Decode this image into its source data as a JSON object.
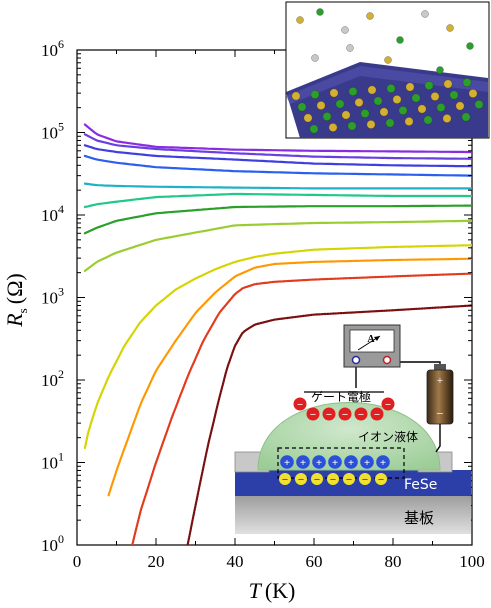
{
  "chart_data": {
    "type": "line",
    "xlabel": "T",
    "xlabel_unit": "(K)",
    "ylabel": "R",
    "ylabel_sub": "s",
    "ylabel_unit": "(Ω)",
    "y_scale": "log",
    "xlim": [
      0,
      100
    ],
    "ylim": [
      1,
      1000000
    ],
    "x_ticks": [
      "0",
      "20",
      "40",
      "60",
      "80",
      "100"
    ],
    "y_ticks": [
      {
        "base": "10",
        "exp": "0"
      },
      {
        "base": "10",
        "exp": "1"
      },
      {
        "base": "10",
        "exp": "2"
      },
      {
        "base": "10",
        "exp": "3"
      },
      {
        "base": "10",
        "exp": "4"
      },
      {
        "base": "10",
        "exp": "5"
      },
      {
        "base": "10",
        "exp": "6"
      }
    ],
    "grid": false,
    "series": [
      {
        "color": "#8a2be2",
        "x": [
          2,
          5,
          10,
          20,
          40,
          60,
          80,
          100
        ],
        "y": [
          125000,
          95000,
          78000,
          67000,
          62000,
          60000,
          59000,
          58000
        ]
      },
      {
        "color": "#6a3fe0",
        "x": [
          2,
          5,
          10,
          20,
          40,
          60,
          80,
          100
        ],
        "y": [
          95000,
          80000,
          70000,
          63000,
          56000,
          51000,
          49000,
          48000
        ]
      },
      {
        "color": "#3f3fe0",
        "x": [
          2,
          5,
          10,
          20,
          40,
          60,
          80,
          100
        ],
        "y": [
          70000,
          63000,
          58000,
          52000,
          47000,
          42000,
          40000,
          39000
        ]
      },
      {
        "color": "#2a5ff0",
        "x": [
          2,
          5,
          10,
          20,
          40,
          60,
          80,
          100
        ],
        "y": [
          52000,
          47000,
          43000,
          38000,
          34000,
          32000,
          31000,
          30000
        ]
      },
      {
        "color": "#20b0c8",
        "x": [
          2,
          5,
          10,
          20,
          40,
          60,
          80,
          100
        ],
        "y": [
          24000,
          23000,
          22500,
          22000,
          21500,
          21000,
          21000,
          21000
        ]
      },
      {
        "color": "#22c88a",
        "x": [
          2,
          5,
          10,
          20,
          40,
          60,
          80,
          100
        ],
        "y": [
          12500,
          13500,
          14500,
          16500,
          18000,
          17500,
          17000,
          17000
        ]
      },
      {
        "color": "#2aa02a",
        "x": [
          2,
          5,
          10,
          20,
          40,
          60,
          80,
          100
        ],
        "y": [
          6000,
          7000,
          8500,
          10500,
          12500,
          12800,
          12800,
          13000
        ]
      },
      {
        "color": "#9acd32",
        "x": [
          2,
          5,
          10,
          20,
          40,
          60,
          80,
          100
        ],
        "y": [
          2100,
          2700,
          3500,
          5000,
          7500,
          8000,
          8200,
          8500
        ]
      },
      {
        "color": "#d4d400",
        "x": [
          2,
          3,
          5,
          8,
          12,
          16,
          20,
          25,
          30,
          35,
          40,
          45,
          50,
          60,
          80,
          100
        ],
        "y": [
          15,
          25,
          50,
          110,
          260,
          500,
          800,
          1250,
          1700,
          2200,
          2700,
          3100,
          3400,
          3800,
          4100,
          4300
        ]
      },
      {
        "color": "#ff9800",
        "x": [
          8,
          10,
          13,
          16,
          20,
          25,
          30,
          35,
          40,
          45,
          50,
          60,
          80,
          100
        ],
        "y": [
          4,
          8,
          20,
          50,
          130,
          300,
          650,
          1150,
          1800,
          2300,
          2550,
          2700,
          2850,
          2950
        ]
      },
      {
        "color": "#e23a1a",
        "x": [
          14,
          16,
          20,
          24,
          28,
          32,
          36,
          40,
          42,
          45,
          50,
          60,
          80,
          100
        ],
        "y": [
          1,
          2.5,
          10,
          35,
          110,
          300,
          650,
          1100,
          1300,
          1450,
          1550,
          1650,
          1800,
          1950
        ]
      },
      {
        "color": "#7a0f0f",
        "x": [
          28,
          30,
          33,
          36,
          38,
          40,
          42,
          45,
          50,
          60,
          80,
          100
        ],
        "y": [
          1,
          3,
          15,
          60,
          140,
          260,
          380,
          470,
          540,
          620,
          700,
          800
        ]
      }
    ]
  },
  "insets": {
    "device": {
      "meter_label": "A",
      "gate_label": "ゲート電極",
      "liquid_label": "イオン液体",
      "fese_label": "FeSe",
      "substrate_label": "基板",
      "battery_plus": "+",
      "battery_minus": "−",
      "minus_sign": "−",
      "plus_sign": "+"
    },
    "crystal": {}
  }
}
